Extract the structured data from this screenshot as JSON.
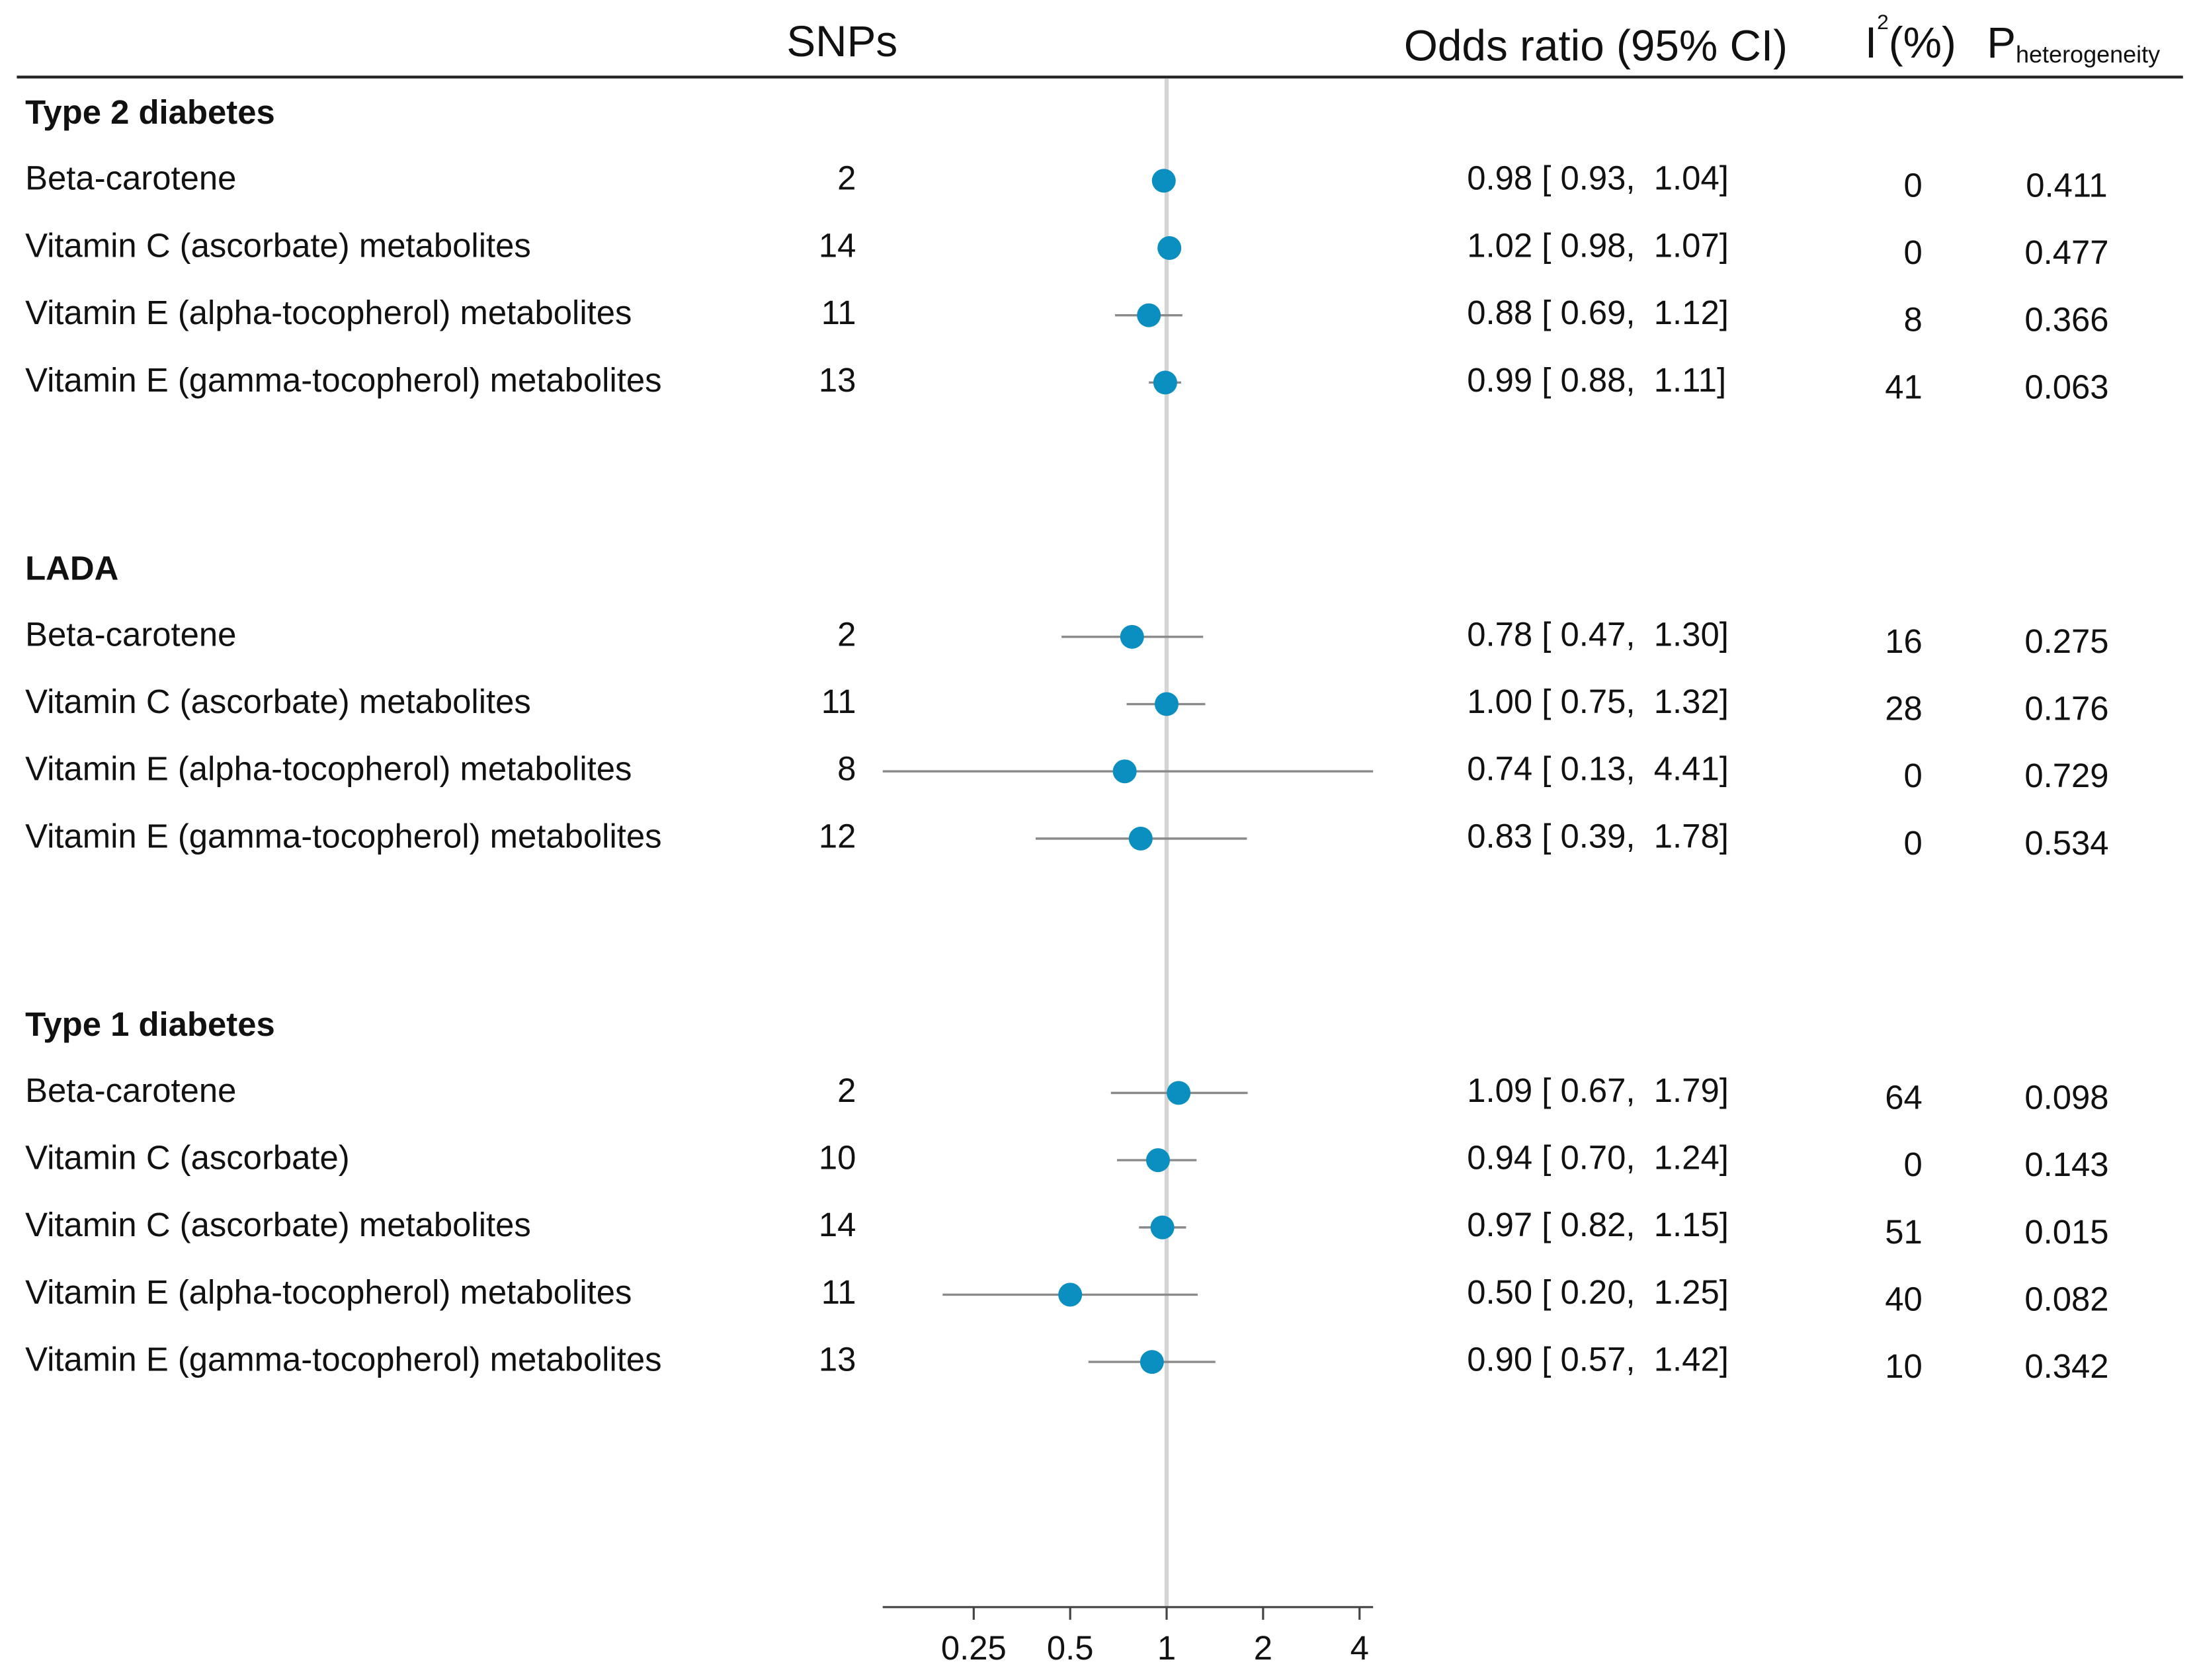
{
  "chart_data": {
    "type": "forest",
    "columns": {
      "snps": "SNPs",
      "or": "Odds ratio (95% CI)",
      "i2": {
        "base": "I",
        "sup": "2",
        "rest": "(%)"
      },
      "p": {
        "base": "P",
        "sub": "heterogeneity"
      }
    },
    "color": "#0b8fc0",
    "ci_color": "#8a8a8a",
    "log_x": true,
    "reference_line": 1,
    "xlim": [
      0.13,
      4.41
    ],
    "xticks": [
      0.25,
      0.5,
      1,
      2,
      4
    ],
    "groups": [
      {
        "name": "Type 2 diabetes",
        "rows": [
          {
            "label": "Beta-carotene",
            "snps": 2,
            "or": 0.98,
            "lower": 0.93,
            "upper": 1.04,
            "ci_label": "0.98 [ 0.93,  1.04]",
            "i2": 0,
            "p_het": 0.411
          },
          {
            "label": "Vitamin C (ascorbate) metabolites",
            "snps": 14,
            "or": 1.02,
            "lower": 0.98,
            "upper": 1.07,
            "ci_label": "1.02 [ 0.98,  1.07]",
            "i2": 0,
            "p_het": 0.477
          },
          {
            "label": "Vitamin E (alpha-tocopherol) metabolites",
            "snps": 11,
            "or": 0.88,
            "lower": 0.69,
            "upper": 1.12,
            "ci_label": "0.88 [ 0.69,  1.12]",
            "i2": 8,
            "p_het": 0.366
          },
          {
            "label": "Vitamin E (gamma-tocopherol) metabolites",
            "snps": 13,
            "or": 0.99,
            "lower": 0.88,
            "upper": 1.11,
            "ci_label": "0.99 [ 0.88,  1.11]",
            "i2": 41,
            "p_het": 0.063
          }
        ]
      },
      {
        "name": "LADA",
        "rows": [
          {
            "label": "Beta-carotene",
            "snps": 2,
            "or": 0.78,
            "lower": 0.47,
            "upper": 1.3,
            "ci_label": "0.78 [ 0.47,  1.30]",
            "i2": 16,
            "p_het": 0.275
          },
          {
            "label": "Vitamin C (ascorbate) metabolites",
            "snps": 11,
            "or": 1.0,
            "lower": 0.75,
            "upper": 1.32,
            "ci_label": "1.00 [ 0.75,  1.32]",
            "i2": 28,
            "p_het": 0.176
          },
          {
            "label": "Vitamin E (alpha-tocopherol) metabolites",
            "snps": 8,
            "or": 0.74,
            "lower": 0.13,
            "upper": 4.41,
            "ci_label": "0.74 [ 0.13,  4.41]",
            "i2": 0,
            "p_het": 0.729
          },
          {
            "label": "Vitamin E (gamma-tocopherol) metabolites",
            "snps": 12,
            "or": 0.83,
            "lower": 0.39,
            "upper": 1.78,
            "ci_label": "0.83 [ 0.39,  1.78]",
            "i2": 0,
            "p_het": 0.534
          }
        ]
      },
      {
        "name": "Type 1 diabetes",
        "rows": [
          {
            "label": "Beta-carotene",
            "snps": 2,
            "or": 1.09,
            "lower": 0.67,
            "upper": 1.79,
            "ci_label": "1.09 [ 0.67,  1.79]",
            "i2": 64,
            "p_het": 0.098
          },
          {
            "label": "Vitamin C (ascorbate)",
            "snps": 10,
            "or": 0.94,
            "lower": 0.7,
            "upper": 1.24,
            "ci_label": "0.94 [ 0.70,  1.24]",
            "i2": 0,
            "p_het": 0.143
          },
          {
            "label": "Vitamin C (ascorbate) metabolites",
            "snps": 14,
            "or": 0.97,
            "lower": 0.82,
            "upper": 1.15,
            "ci_label": "0.97 [ 0.82,  1.15]",
            "i2": 51,
            "p_het": 0.015
          },
          {
            "label": "Vitamin E (alpha-tocopherol) metabolites",
            "snps": 11,
            "or": 0.5,
            "lower": 0.2,
            "upper": 1.25,
            "ci_label": "0.50 [ 0.20,  1.25]",
            "i2": 40,
            "p_het": 0.082
          },
          {
            "label": "Vitamin E (gamma-tocopherol) metabolites",
            "snps": 13,
            "or": 0.9,
            "lower": 0.57,
            "upper": 1.42,
            "ci_label": "0.90 [ 0.57,  1.42]",
            "i2": 10,
            "p_het": 0.342
          }
        ]
      }
    ]
  }
}
